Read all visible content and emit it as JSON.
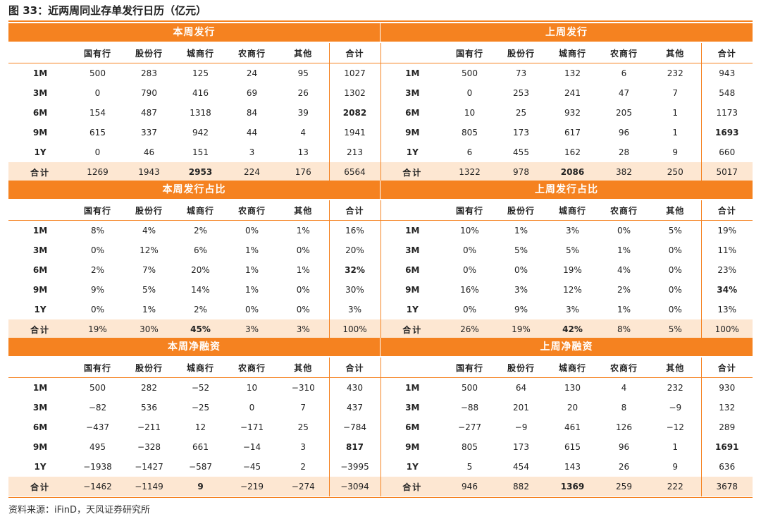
{
  "figure_title": "图 33：近两周同业存单发行日历（亿元）",
  "source": "资料来源：iFinD，天风证券研究所",
  "colors": {
    "accent": "#f58220",
    "highlight": "#e8261c",
    "total_row_bg": "#fde7d2"
  },
  "columns": [
    "国有行",
    "股份行",
    "城商行",
    "农商行",
    "其他",
    "合计"
  ],
  "sections": [
    {
      "left": {
        "title": "本周发行",
        "rows": [
          {
            "label": "1M",
            "cells": [
              "500",
              "283",
              "125",
              "24",
              "95",
              "1027"
            ],
            "hl": []
          },
          {
            "label": "3M",
            "cells": [
              "0",
              "790",
              "416",
              "69",
              "26",
              "1302"
            ],
            "hl": []
          },
          {
            "label": "6M",
            "cells": [
              "154",
              "487",
              "1318",
              "84",
              "39",
              "2082"
            ],
            "hl": [
              5
            ]
          },
          {
            "label": "9M",
            "cells": [
              "615",
              "337",
              "942",
              "44",
              "4",
              "1941"
            ],
            "hl": []
          },
          {
            "label": "1Y",
            "cells": [
              "0",
              "46",
              "151",
              "3",
              "13",
              "213"
            ],
            "hl": []
          },
          {
            "label": "合计",
            "cells": [
              "1269",
              "1943",
              "2953",
              "224",
              "176",
              "6564"
            ],
            "hl": [
              2
            ]
          }
        ]
      },
      "right": {
        "title": "上周发行",
        "rows": [
          {
            "label": "1M",
            "cells": [
              "500",
              "73",
              "132",
              "6",
              "232",
              "943"
            ],
            "hl": []
          },
          {
            "label": "3M",
            "cells": [
              "0",
              "253",
              "241",
              "47",
              "7",
              "548"
            ],
            "hl": []
          },
          {
            "label": "6M",
            "cells": [
              "10",
              "25",
              "932",
              "205",
              "1",
              "1173"
            ],
            "hl": []
          },
          {
            "label": "9M",
            "cells": [
              "805",
              "173",
              "617",
              "96",
              "1",
              "1693"
            ],
            "hl": [
              5
            ]
          },
          {
            "label": "1Y",
            "cells": [
              "6",
              "455",
              "162",
              "28",
              "9",
              "660"
            ],
            "hl": []
          },
          {
            "label": "合计",
            "cells": [
              "1322",
              "978",
              "2086",
              "382",
              "250",
              "5017"
            ],
            "hl": [
              2
            ]
          }
        ]
      }
    },
    {
      "left": {
        "title": "本周发行占比",
        "rows": [
          {
            "label": "1M",
            "cells": [
              "8%",
              "4%",
              "2%",
              "0%",
              "1%",
              "16%"
            ],
            "hl": []
          },
          {
            "label": "3M",
            "cells": [
              "0%",
              "12%",
              "6%",
              "1%",
              "0%",
              "20%"
            ],
            "hl": []
          },
          {
            "label": "6M",
            "cells": [
              "2%",
              "7%",
              "20%",
              "1%",
              "1%",
              "32%"
            ],
            "hl": [
              5
            ]
          },
          {
            "label": "9M",
            "cells": [
              "9%",
              "5%",
              "14%",
              "1%",
              "0%",
              "30%"
            ],
            "hl": []
          },
          {
            "label": "1Y",
            "cells": [
              "0%",
              "1%",
              "2%",
              "0%",
              "0%",
              "3%"
            ],
            "hl": []
          },
          {
            "label": "合计",
            "cells": [
              "19%",
              "30%",
              "45%",
              "3%",
              "3%",
              "100%"
            ],
            "hl": [
              2
            ]
          }
        ]
      },
      "right": {
        "title": "上周发行占比",
        "rows": [
          {
            "label": "1M",
            "cells": [
              "10%",
              "1%",
              "3%",
              "0%",
              "5%",
              "19%"
            ],
            "hl": []
          },
          {
            "label": "3M",
            "cells": [
              "0%",
              "5%",
              "5%",
              "1%",
              "0%",
              "11%"
            ],
            "hl": []
          },
          {
            "label": "6M",
            "cells": [
              "0%",
              "0%",
              "19%",
              "4%",
              "0%",
              "23%"
            ],
            "hl": []
          },
          {
            "label": "9M",
            "cells": [
              "16%",
              "3%",
              "12%",
              "2%",
              "0%",
              "34%"
            ],
            "hl": [
              5
            ]
          },
          {
            "label": "1Y",
            "cells": [
              "0%",
              "9%",
              "3%",
              "1%",
              "0%",
              "13%"
            ],
            "hl": []
          },
          {
            "label": "合计",
            "cells": [
              "26%",
              "19%",
              "42%",
              "8%",
              "5%",
              "100%"
            ],
            "hl": [
              2
            ]
          }
        ]
      }
    },
    {
      "left": {
        "title": "本周净融资",
        "rows": [
          {
            "label": "1M",
            "cells": [
              "500",
              "282",
              "−52",
              "10",
              "−310",
              "430"
            ],
            "hl": []
          },
          {
            "label": "3M",
            "cells": [
              "−82",
              "536",
              "−25",
              "0",
              "7",
              "437"
            ],
            "hl": []
          },
          {
            "label": "6M",
            "cells": [
              "−437",
              "−211",
              "12",
              "−171",
              "25",
              "−784"
            ],
            "hl": []
          },
          {
            "label": "9M",
            "cells": [
              "495",
              "−328",
              "661",
              "−14",
              "3",
              "817"
            ],
            "hl": [
              5
            ]
          },
          {
            "label": "1Y",
            "cells": [
              "−1938",
              "−1427",
              "−587",
              "−45",
              "2",
              "−3995"
            ],
            "hl": []
          },
          {
            "label": "合计",
            "cells": [
              "−1462",
              "−1149",
              "9",
              "−219",
              "−274",
              "−3094"
            ],
            "hl": [
              2
            ]
          }
        ]
      },
      "right": {
        "title": "上周净融资",
        "rows": [
          {
            "label": "1M",
            "cells": [
              "500",
              "64",
              "130",
              "4",
              "232",
              "930"
            ],
            "hl": []
          },
          {
            "label": "3M",
            "cells": [
              "−88",
              "201",
              "20",
              "8",
              "−9",
              "132"
            ],
            "hl": []
          },
          {
            "label": "6M",
            "cells": [
              "−277",
              "−9",
              "461",
              "126",
              "−12",
              "289"
            ],
            "hl": []
          },
          {
            "label": "9M",
            "cells": [
              "805",
              "173",
              "615",
              "96",
              "1",
              "1691"
            ],
            "hl": [
              5
            ]
          },
          {
            "label": "1Y",
            "cells": [
              "5",
              "454",
              "143",
              "26",
              "9",
              "636"
            ],
            "hl": []
          },
          {
            "label": "合计",
            "cells": [
              "946",
              "882",
              "1369",
              "259",
              "222",
              "3678"
            ],
            "hl": [
              2
            ]
          }
        ]
      }
    }
  ]
}
